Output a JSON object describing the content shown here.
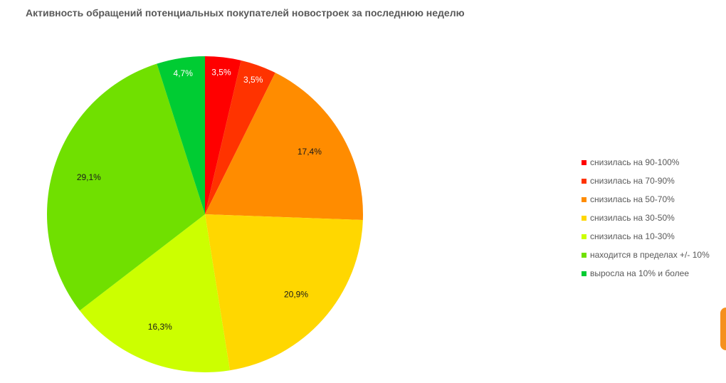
{
  "chart_data": {
    "type": "pie",
    "title": "Активность обращений потенциальных покупателей новостроек за последнюю неделю",
    "categories": [
      "снизилась на 90-100%",
      "снизилась на 70-90%",
      "снизилась на 50-70%",
      "снизилась на 30-50%",
      "снизилась на 10-30%",
      "находится в пределах +/- 10%",
      "выросла на 10% и более"
    ],
    "values": [
      3.5,
      3.5,
      17.4,
      20.9,
      16.3,
      29.1,
      4.7
    ],
    "value_labels": [
      "3,5%",
      "3,5%",
      "17,4%",
      "20,9%",
      "16,3%",
      "29,1%",
      "4,7%"
    ],
    "label_colors": [
      "#ffffff",
      "#ffffff",
      "#1a1a1a",
      "#1a1a1a",
      "#1a1a1a",
      "#1a1a1a",
      "#ffffff"
    ],
    "colors": [
      "#ff0000",
      "#ff3300",
      "#ff8c00",
      "#ffd700",
      "#ccff00",
      "#70e000",
      "#00cc33"
    ],
    "start_angle_deg": 0,
    "direction": "clockwise",
    "legend_position": "right"
  }
}
